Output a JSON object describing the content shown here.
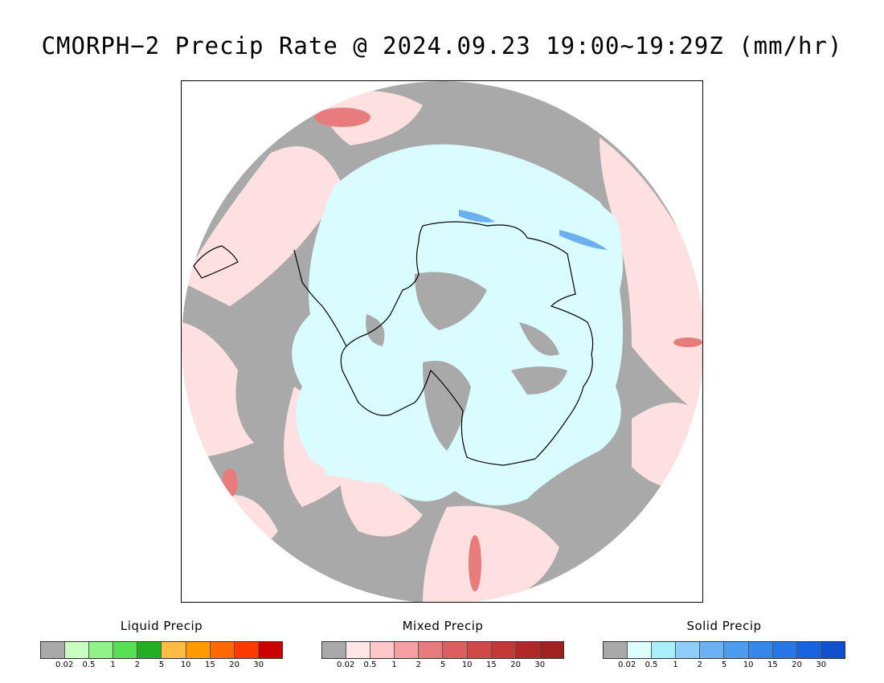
{
  "title": "CMORPH−2 Precip Rate @ 2024.09.23 19:00~19:29Z (mm/hr)",
  "map": {
    "projection": "south polar stereographic",
    "colors": {
      "no_precip": "#a9a9a9",
      "mixed_light": "#ffe0e0",
      "mixed_medium": "#e87b7b",
      "solid_light": "#d8fcff",
      "solid_medium": "#6aaff0",
      "coastline": "#000000"
    }
  },
  "legends": [
    {
      "title": "Liquid Precip",
      "colors": [
        "#a9a9a9",
        "#c8fcc0",
        "#90f08a",
        "#55e055",
        "#22b022",
        "#ffbb44",
        "#ff9a00",
        "#ff6a00",
        "#ff3a00",
        "#cc0000"
      ],
      "ticks": [
        "0.02",
        "0.5",
        "1",
        "2",
        "5",
        "10",
        "15",
        "20",
        "30"
      ]
    },
    {
      "title": "Mixed Precip",
      "colors": [
        "#a9a9a9",
        "#ffe6e6",
        "#ffc8c8",
        "#f4a0a0",
        "#e87b7b",
        "#dc5e5e",
        "#d04848",
        "#c43838",
        "#b02828",
        "#a02020"
      ],
      "ticks": [
        "0.02",
        "0.5",
        "1",
        "2",
        "5",
        "10",
        "15",
        "20",
        "30"
      ]
    },
    {
      "title": "Solid Precip",
      "colors": [
        "#a9a9a9",
        "#ddfdff",
        "#aaeefc",
        "#90cdf8",
        "#6ab2f4",
        "#4c9cf0",
        "#3488ec",
        "#2676e6",
        "#1864e0",
        "#1050cc"
      ],
      "ticks": [
        "0.02",
        "0.5",
        "1",
        "2",
        "5",
        "10",
        "15",
        "20",
        "30"
      ]
    }
  ]
}
